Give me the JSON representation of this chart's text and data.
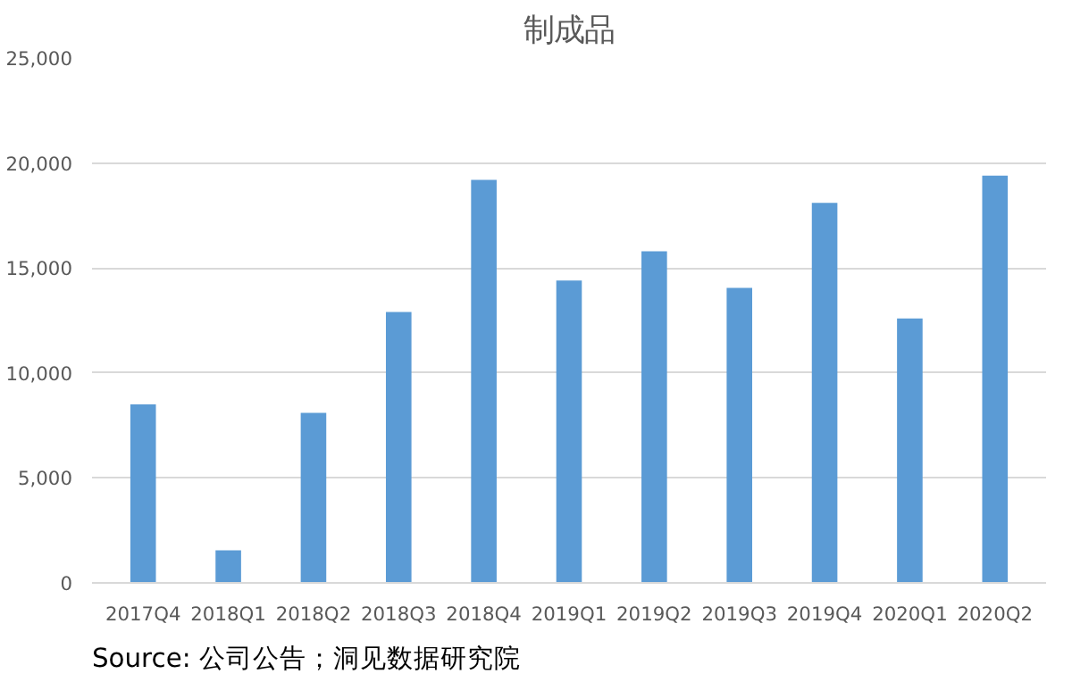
{
  "chart_data": {
    "type": "bar",
    "title": "制成品",
    "categories": [
      "2017Q4",
      "2018Q1",
      "2018Q2",
      "2018Q3",
      "2018Q4",
      "2019Q1",
      "2019Q2",
      "2019Q3",
      "2019Q4",
      "2020Q1",
      "2020Q2"
    ],
    "values": [
      8500,
      1550,
      8100,
      12900,
      19200,
      14400,
      15800,
      14050,
      18100,
      12600,
      19400
    ],
    "color": "#5b9bd5",
    "ylim": [
      0,
      25000
    ],
    "yticks": [
      {
        "value": 0,
        "label": "0"
      },
      {
        "value": 5000,
        "label": "5,000"
      },
      {
        "value": 10000,
        "label": "10,000"
      },
      {
        "value": 15000,
        "label": "15,000"
      },
      {
        "value": 20000,
        "label": "20,000"
      },
      {
        "value": 25000,
        "label": "25,000"
      }
    ],
    "grid": "y",
    "annotations": [
      "Source:  公司公告；洞见数据研究院"
    ]
  }
}
